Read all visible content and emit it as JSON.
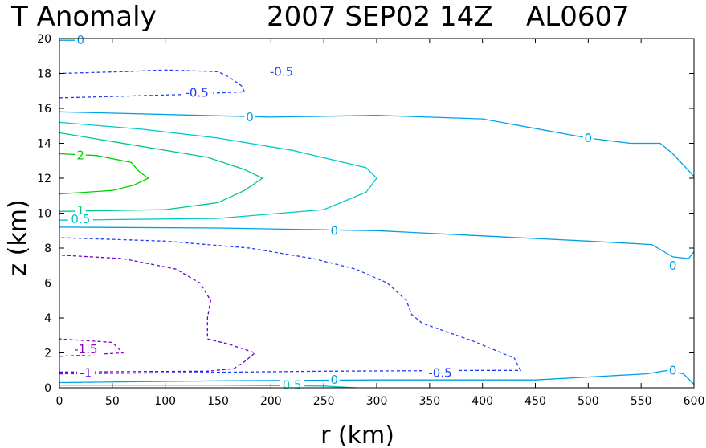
{
  "chart_data": {
    "type": "contour",
    "title": "T Anomaly",
    "datetime": "2007 SEP02 14Z",
    "storm_id": "AL0607",
    "xlabel": "r (km)",
    "ylabel": "z (km)",
    "xlim": [
      0,
      600
    ],
    "ylim": [
      0,
      20
    ],
    "xticks": [
      "0",
      "50",
      "100",
      "150",
      "200",
      "250",
      "300",
      "350",
      "400",
      "450",
      "500",
      "550",
      "600"
    ],
    "yticks": [
      "0",
      "2",
      "4",
      "6",
      "8",
      "10",
      "12",
      "14",
      "16",
      "18",
      "20"
    ],
    "contours": [
      {
        "level": -1.5,
        "color": "#8c00c8",
        "dashed": true,
        "points": [
          [
            0,
            1.8
          ],
          [
            60,
            2.0
          ],
          [
            50,
            2.6
          ],
          [
            0,
            2.8
          ]
        ]
      },
      {
        "level": -1,
        "color": "#6a00d6",
        "dashed": true,
        "points": [
          [
            0,
            0.9
          ],
          [
            140,
            0.95
          ],
          [
            165,
            1.1
          ],
          [
            175,
            1.5
          ],
          [
            185,
            2.0
          ],
          [
            160,
            2.5
          ],
          [
            140,
            2.8
          ],
          [
            140,
            4.0
          ],
          [
            143,
            5.0
          ],
          [
            133,
            6.0
          ],
          [
            110,
            6.8
          ],
          [
            60,
            7.4
          ],
          [
            0,
            7.6
          ]
        ]
      },
      {
        "level": -0.5,
        "color": "#1e3cff",
        "dashed": true,
        "points": [
          [
            0,
            0.8
          ],
          [
            250,
            0.95
          ],
          [
            400,
            1.0
          ],
          [
            436,
            1.0
          ],
          [
            430,
            1.7
          ],
          [
            390,
            2.7
          ],
          [
            343,
            3.7
          ],
          [
            333,
            4.2
          ],
          [
            328,
            5.0
          ],
          [
            310,
            6.0
          ],
          [
            280,
            6.8
          ],
          [
            240,
            7.4
          ],
          [
            180,
            8.0
          ],
          [
            100,
            8.4
          ],
          [
            0,
            8.6
          ]
        ]
      },
      {
        "level": -0.5,
        "color": "#1e3cff",
        "dashed": true,
        "points": [
          [
            0,
            16.6
          ],
          [
            120,
            16.8
          ],
          [
            175,
            16.95
          ],
          [
            172,
            17.3
          ],
          [
            160,
            17.8
          ],
          [
            150,
            18.1
          ],
          [
            100,
            18.2
          ],
          [
            60,
            18.1
          ],
          [
            0,
            18.0
          ]
        ]
      },
      {
        "level": 0,
        "color": "#00a0e6",
        "dashed": false,
        "points": [
          [
            0,
            0.3
          ],
          [
            150,
            0.4
          ],
          [
            300,
            0.45
          ],
          [
            450,
            0.45
          ],
          [
            555,
            0.8
          ],
          [
            575,
            1.0
          ],
          [
            590,
            0.8
          ],
          [
            600,
            0.2
          ]
        ]
      },
      {
        "level": 0,
        "color": "#00a0e6",
        "dashed": false,
        "points": [
          [
            0,
            9.2
          ],
          [
            150,
            9.15
          ],
          [
            300,
            9.0
          ],
          [
            400,
            8.7
          ],
          [
            500,
            8.4
          ],
          [
            560,
            8.2
          ],
          [
            580,
            7.5
          ],
          [
            595,
            7.4
          ],
          [
            600,
            7.8
          ]
        ]
      },
      {
        "level": 0,
        "color": "#00a0e6",
        "dashed": false,
        "points": [
          [
            0,
            15.8
          ],
          [
            200,
            15.5
          ],
          [
            300,
            15.6
          ],
          [
            400,
            15.4
          ],
          [
            500,
            14.3
          ],
          [
            540,
            14.0
          ],
          [
            568,
            14.0
          ],
          [
            580,
            13.4
          ],
          [
            600,
            12.1
          ]
        ]
      },
      {
        "level": 0,
        "color": "#00a0e6",
        "dashed": false,
        "points": [
          [
            0,
            19.9
          ],
          [
            20,
            19.9
          ],
          [
            25,
            20.0
          ]
        ]
      },
      {
        "level": 0.5,
        "color": "#00c8c8",
        "dashed": false,
        "points": [
          [
            0,
            0.15
          ],
          [
            150,
            0.15
          ],
          [
            250,
            0.1
          ],
          [
            280,
            0.0
          ]
        ]
      },
      {
        "level": 0.5,
        "color": "#00c8c8",
        "dashed": false,
        "points": [
          [
            0,
            9.6
          ],
          [
            150,
            9.7
          ],
          [
            250,
            10.2
          ],
          [
            290,
            11.2
          ],
          [
            300,
            12.0
          ],
          [
            290,
            12.6
          ],
          [
            220,
            13.6
          ],
          [
            150,
            14.3
          ],
          [
            80,
            14.8
          ],
          [
            0,
            15.2
          ]
        ]
      },
      {
        "level": 1,
        "color": "#00c88c",
        "dashed": false,
        "points": [
          [
            0,
            10.1
          ],
          [
            100,
            10.2
          ],
          [
            150,
            10.6
          ],
          [
            175,
            11.3
          ],
          [
            192,
            12.0
          ],
          [
            175,
            12.5
          ],
          [
            140,
            13.2
          ],
          [
            70,
            13.9
          ],
          [
            0,
            14.6
          ]
        ]
      },
      {
        "level": 2,
        "color": "#00d200",
        "dashed": false,
        "points": [
          [
            0,
            11.1
          ],
          [
            50,
            11.3
          ],
          [
            70,
            11.6
          ],
          [
            84,
            12.0
          ],
          [
            75,
            12.4
          ],
          [
            68,
            12.9
          ],
          [
            35,
            13.3
          ],
          [
            0,
            13.4
          ]
        ]
      }
    ],
    "labels": [
      {
        "text": "0",
        "x": 20,
        "y": 19.9,
        "color": "#00a0e6"
      },
      {
        "text": "-0.5",
        "x": 210,
        "y": 18.1,
        "color": "#1e3cff"
      },
      {
        "text": "-0.5",
        "x": 130,
        "y": 16.9,
        "color": "#1e3cff"
      },
      {
        "text": "0",
        "x": 180,
        "y": 15.5,
        "color": "#00a0e6"
      },
      {
        "text": "0",
        "x": 500,
        "y": 14.3,
        "color": "#00a0e6"
      },
      {
        "text": "2",
        "x": 20,
        "y": 13.3,
        "color": "#00d200"
      },
      {
        "text": "1",
        "x": 20,
        "y": 10.15,
        "color": "#00c88c"
      },
      {
        "text": "0.5",
        "x": 20,
        "y": 9.65,
        "color": "#00c8c8"
      },
      {
        "text": "0",
        "x": 260,
        "y": 9.0,
        "color": "#00a0e6"
      },
      {
        "text": "0",
        "x": 580,
        "y": 7.0,
        "color": "#00a0e6"
      },
      {
        "text": "-1.5",
        "x": 25,
        "y": 2.2,
        "color": "#8c00c8"
      },
      {
        "text": "-1",
        "x": 25,
        "y": 0.85,
        "color": "#6a00d6"
      },
      {
        "text": "-0.5",
        "x": 360,
        "y": 0.85,
        "color": "#1e3cff"
      },
      {
        "text": "0",
        "x": 260,
        "y": 0.45,
        "color": "#00a0e6"
      },
      {
        "text": "0",
        "x": 580,
        "y": 1.0,
        "color": "#00a0e6"
      },
      {
        "text": "0.5",
        "x": 220,
        "y": 0.15,
        "color": "#00c8c8"
      }
    ]
  }
}
